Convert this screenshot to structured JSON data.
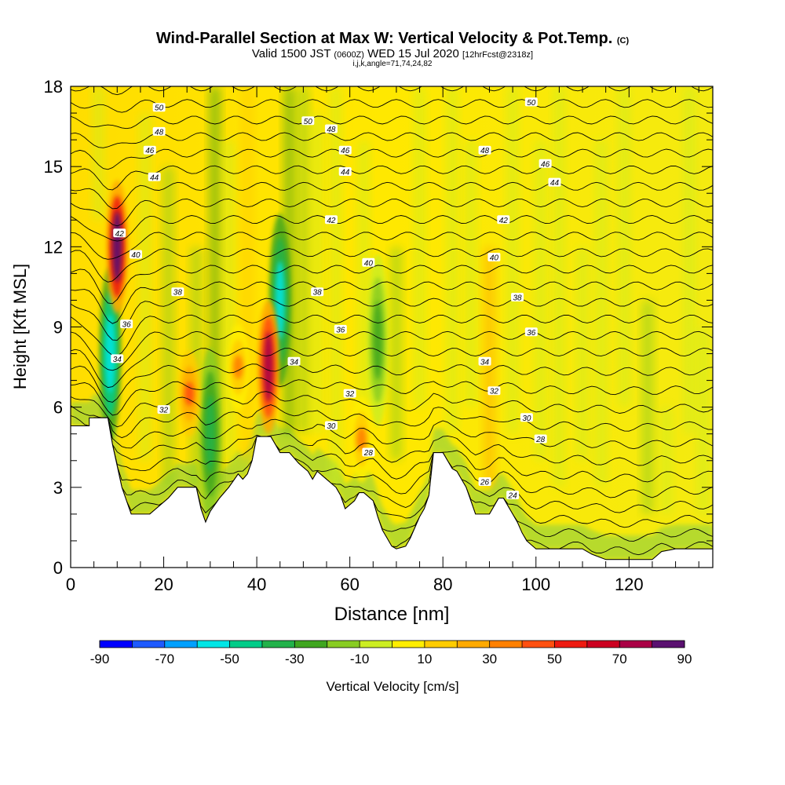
{
  "title": {
    "main": "Wind-Parallel Section at Max W: Vertical Velocity & Pot.Temp.",
    "main_suffix": "(C)",
    "valid_prefix": "Valid 1500 JST",
    "valid_zulu": "(0600Z)",
    "valid_date": "WED 15 Jul 2020",
    "forecast": "[12hrFcst@2318z]",
    "indices": "i,j,k,angle=71,74,24,82"
  },
  "chart_data": {
    "type": "heatmap",
    "xlabel": "Distance [nm]",
    "ylabel": "Height [Kft MSL]",
    "xlim": [
      0,
      138
    ],
    "ylim": [
      0,
      18
    ],
    "xticks": [
      0,
      20,
      40,
      60,
      80,
      100,
      120
    ],
    "yticks": [
      0,
      3,
      6,
      9,
      12,
      15,
      18
    ],
    "field_fill": "Vertical Velocity [cm/s]",
    "contour_field": "Potential Temperature (C)",
    "colorbar": {
      "label": "Vertical Velocity [cm/s]",
      "ticks": [
        -90,
        -70,
        -50,
        -30,
        -10,
        10,
        30,
        50,
        70,
        90
      ],
      "colors": [
        "#0000ff",
        "#1e5aff",
        "#00a0ff",
        "#00e6e6",
        "#00cc88",
        "#22b24a",
        "#3fa61f",
        "#88cc22",
        "#ccee22",
        "#ffee00",
        "#ffcc00",
        "#ffaa00",
        "#ff8000",
        "#ff5010",
        "#ee1a10",
        "#cc0020",
        "#aa0045",
        "#5a1070"
      ]
    },
    "contour_labels": [
      {
        "x": 19,
        "y": 17.2,
        "v": "50"
      },
      {
        "x": 51,
        "y": 16.7,
        "v": "50"
      },
      {
        "x": 99,
        "y": 17.4,
        "v": "50"
      },
      {
        "x": 19,
        "y": 16.3,
        "v": "48"
      },
      {
        "x": 56,
        "y": 16.4,
        "v": "48"
      },
      {
        "x": 89,
        "y": 15.6,
        "v": "48"
      },
      {
        "x": 17,
        "y": 15.6,
        "v": "46"
      },
      {
        "x": 59,
        "y": 15.6,
        "v": "46"
      },
      {
        "x": 102,
        "y": 15.1,
        "v": "46"
      },
      {
        "x": 18,
        "y": 14.6,
        "v": "44"
      },
      {
        "x": 59,
        "y": 14.8,
        "v": "44"
      },
      {
        "x": 104,
        "y": 14.4,
        "v": "44"
      },
      {
        "x": 10.5,
        "y": 12.5,
        "v": "42"
      },
      {
        "x": 56,
        "y": 13.0,
        "v": "42"
      },
      {
        "x": 93,
        "y": 13.0,
        "v": "42"
      },
      {
        "x": 14,
        "y": 11.7,
        "v": "40"
      },
      {
        "x": 64,
        "y": 11.4,
        "v": "40"
      },
      {
        "x": 91,
        "y": 11.6,
        "v": "40"
      },
      {
        "x": 23,
        "y": 10.3,
        "v": "38"
      },
      {
        "x": 53,
        "y": 10.3,
        "v": "38"
      },
      {
        "x": 96,
        "y": 10.1,
        "v": "38"
      },
      {
        "x": 12,
        "y": 9.1,
        "v": "36"
      },
      {
        "x": 58,
        "y": 8.9,
        "v": "36"
      },
      {
        "x": 99,
        "y": 8.8,
        "v": "36"
      },
      {
        "x": 10,
        "y": 7.8,
        "v": "34"
      },
      {
        "x": 48,
        "y": 7.7,
        "v": "34"
      },
      {
        "x": 89,
        "y": 7.7,
        "v": "34"
      },
      {
        "x": 20,
        "y": 5.9,
        "v": "32"
      },
      {
        "x": 60,
        "y": 6.5,
        "v": "32"
      },
      {
        "x": 91,
        "y": 6.6,
        "v": "32"
      },
      {
        "x": 56,
        "y": 5.3,
        "v": "30"
      },
      {
        "x": 98,
        "y": 5.6,
        "v": "30"
      },
      {
        "x": 64,
        "y": 4.3,
        "v": "28"
      },
      {
        "x": 101,
        "y": 4.8,
        "v": "28"
      },
      {
        "x": 89,
        "y": 3.2,
        "v": "26"
      },
      {
        "x": 95,
        "y": 2.7,
        "v": "24"
      }
    ],
    "terrain": [
      [
        0,
        5.3
      ],
      [
        4,
        5.3
      ],
      [
        4,
        5.6
      ],
      [
        8,
        5.6
      ],
      [
        9,
        4.6
      ],
      [
        11,
        3.0
      ],
      [
        13,
        2.0
      ],
      [
        17,
        2.0
      ],
      [
        19,
        2.3
      ],
      [
        21,
        2.6
      ],
      [
        23,
        3.0
      ],
      [
        27,
        3.0
      ],
      [
        28,
        2.2
      ],
      [
        29,
        1.7
      ],
      [
        30,
        2.1
      ],
      [
        32,
        2.6
      ],
      [
        34,
        3.0
      ],
      [
        36,
        3.5
      ],
      [
        37,
        3.3
      ],
      [
        38,
        3.5
      ],
      [
        39,
        4.0
      ],
      [
        40,
        4.9
      ],
      [
        43,
        4.9
      ],
      [
        44,
        4.6
      ],
      [
        45,
        4.3
      ],
      [
        47,
        4.3
      ],
      [
        49,
        3.9
      ],
      [
        51,
        3.6
      ],
      [
        52,
        3.3
      ],
      [
        53,
        3.6
      ],
      [
        55,
        3.3
      ],
      [
        57,
        3.0
      ],
      [
        58,
        2.7
      ],
      [
        59,
        2.2
      ],
      [
        61,
        2.5
      ],
      [
        62,
        2.8
      ],
      [
        63,
        2.8
      ],
      [
        65,
        2.5
      ],
      [
        66,
        1.9
      ],
      [
        67,
        1.4
      ],
      [
        68,
        1.1
      ],
      [
        69,
        0.8
      ],
      [
        70,
        0.7
      ],
      [
        72,
        0.8
      ],
      [
        73,
        1.1
      ],
      [
        75,
        1.9
      ],
      [
        76,
        2.2
      ],
      [
        77,
        2.7
      ],
      [
        78,
        4.3
      ],
      [
        80,
        4.3
      ],
      [
        81,
        4.0
      ],
      [
        82,
        3.7
      ],
      [
        83,
        3.6
      ],
      [
        84,
        3.3
      ],
      [
        85,
        3.0
      ],
      [
        86,
        2.5
      ],
      [
        87,
        2.0
      ],
      [
        90,
        2.0
      ],
      [
        91,
        2.3
      ],
      [
        92,
        2.6
      ],
      [
        93,
        2.6
      ],
      [
        94,
        2.3
      ],
      [
        95,
        2.0
      ],
      [
        96,
        1.7
      ],
      [
        97,
        1.3
      ],
      [
        98,
        1.0
      ],
      [
        100,
        0.7
      ],
      [
        103,
        0.7
      ],
      [
        105,
        0.7
      ],
      [
        110,
        0.7
      ],
      [
        112,
        0.5
      ],
      [
        115,
        0.3
      ],
      [
        120,
        0.3
      ],
      [
        125,
        0.3
      ],
      [
        127,
        0.6
      ],
      [
        130,
        0.7
      ],
      [
        138,
        0.7
      ]
    ],
    "updraft_cores": [
      {
        "x": 10,
        "y": 12,
        "w_max": 90
      },
      {
        "x": 42.5,
        "y": 7.5,
        "w_max": 70
      },
      {
        "x": 25.5,
        "y": 6.5,
        "w_max": 40
      },
      {
        "x": 36,
        "y": 7.5,
        "w_max": 30
      },
      {
        "x": 62.5,
        "y": 4.8,
        "w_max": 30
      }
    ],
    "downdraft_cores": [
      {
        "x": 8.5,
        "y": 8,
        "w_min": -60
      },
      {
        "x": 45,
        "y": 10,
        "w_min": -55
      },
      {
        "x": 30,
        "y": 5,
        "w_min": -35
      },
      {
        "x": 66,
        "y": 8.5,
        "w_min": -25
      }
    ]
  }
}
